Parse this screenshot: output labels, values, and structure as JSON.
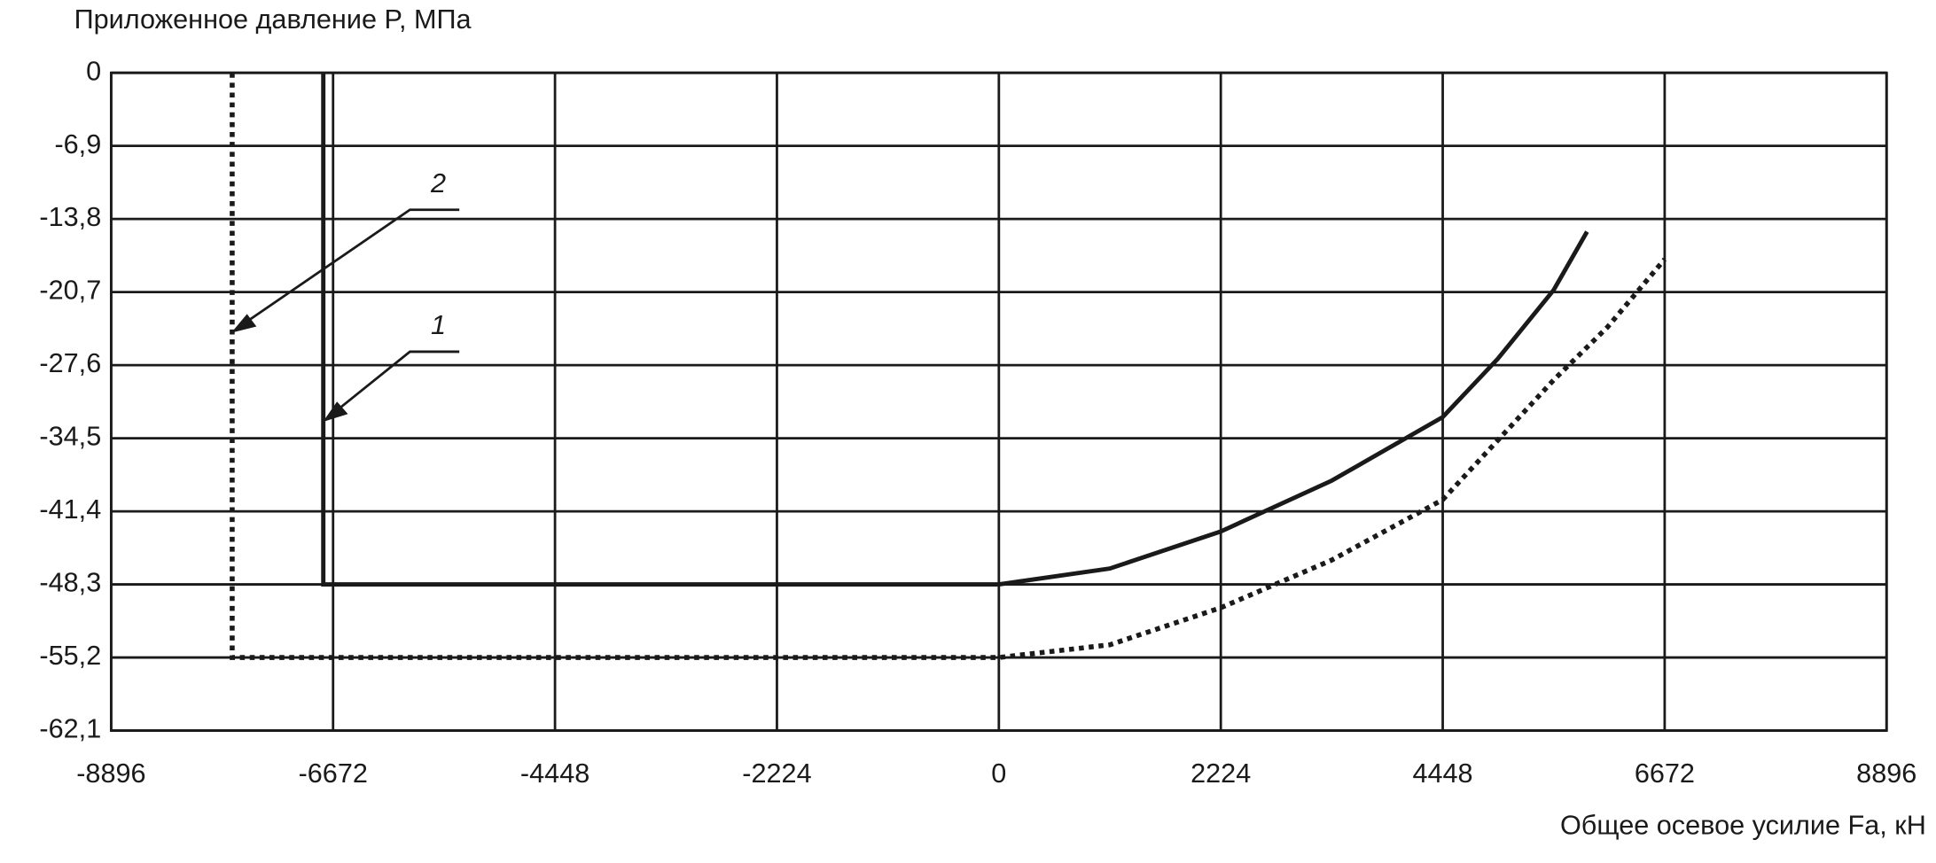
{
  "chart_data": {
    "type": "line",
    "y_label": "Приложенное давление P, МПа",
    "x_label": "Общее осевое усилие Fa, кН",
    "xlim": [
      -8896,
      8896
    ],
    "xticks": [
      -8896,
      -6672,
      -4448,
      -2224,
      0,
      2224,
      4448,
      6672,
      8896
    ],
    "ylim": [
      -62.1,
      0
    ],
    "yticks": [
      0,
      {
        "value": -6.9,
        "label": "-6,9"
      },
      {
        "value": -13.8,
        "label": "-13,8"
      },
      {
        "value": -20.7,
        "label": "-20,7"
      },
      {
        "value": -27.6,
        "label": "-27,6"
      },
      {
        "value": -34.5,
        "label": "-34,5"
      },
      {
        "value": -41.4,
        "label": "-41,4"
      },
      {
        "value": -48.3,
        "label": "-48,3"
      },
      {
        "value": -55.2,
        "label": "-55,2"
      },
      {
        "value": -62.1,
        "label": "-62,1"
      }
    ],
    "grid": true,
    "series": [
      {
        "name": "1",
        "color": "#1a1a1a",
        "style": "solid",
        "x": [
          -6770,
          -6770,
          0,
          1112,
          2224,
          3336,
          4448,
          5000,
          5560,
          5894
        ],
        "values": [
          0,
          -48.3,
          -48.3,
          -46.8,
          -43.3,
          -38.5,
          -32.5,
          -27,
          -20.5,
          -15.0
        ]
      },
      {
        "name": "2",
        "color": "#1a1a1a",
        "style": "dotted",
        "x": [
          -7683,
          -7683,
          0,
          1112,
          2224,
          3336,
          4448,
          5560,
          6100,
          6672
        ],
        "values": [
          0,
          -55.2,
          -55.2,
          -54,
          -50.5,
          -46,
          -40.3,
          -29,
          -24,
          -17.6
        ]
      }
    ]
  }
}
